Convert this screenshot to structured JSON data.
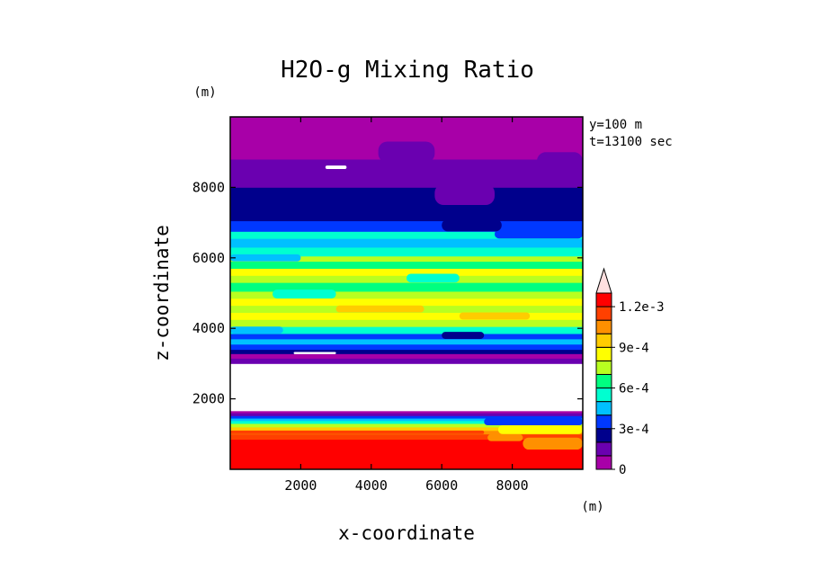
{
  "chart_data": {
    "type": "heatmap",
    "title": "H2O-g Mixing Ratio",
    "xlabel": "x-coordinate",
    "ylabel": "z-coordinate",
    "x_unit": "(m)",
    "y_unit": "(m)",
    "xlim": [
      0,
      10000
    ],
    "ylim": [
      0,
      10000
    ],
    "x_ticks": [
      2000,
      4000,
      6000,
      8000
    ],
    "y_ticks": [
      2000,
      4000,
      6000,
      8000
    ],
    "info_lines": [
      "y=100 m",
      "t=13100 sec"
    ],
    "colorbar": {
      "min": 0,
      "max": 0.0013,
      "levels": [
        0,
        0.0001,
        0.0002,
        0.0003,
        0.0004,
        0.0005,
        0.0006,
        0.0007,
        0.0008,
        0.0009,
        0.001,
        0.0011,
        0.0012,
        0.0013
      ],
      "colors": [
        "#a800a8",
        "#6a00b0",
        "#00008c",
        "#0038ff",
        "#00c0ff",
        "#00ffd0",
        "#00ff80",
        "#b8ff20",
        "#ffff00",
        "#ffcc00",
        "#ff9000",
        "#ff4000",
        "#ff0000",
        "#ffc8c8"
      ],
      "tick_labels": [
        {
          "value": 0,
          "label": "0"
        },
        {
          "value": 0.0003,
          "label": "3e-4"
        },
        {
          "value": 0.0006,
          "label": "6e-4"
        },
        {
          "value": 0.0009,
          "label": "9e-4"
        },
        {
          "value": 0.0012,
          "label": "1.2e-3"
        }
      ],
      "extend": "max",
      "extend_color": "#ffe0e0"
    },
    "bands": [
      {
        "z0": 0,
        "z1": 850,
        "value": 0.00125
      },
      {
        "z0": 850,
        "z1": 1000,
        "value": 0.00115
      },
      {
        "z0": 1000,
        "z1": 1100,
        "value": 0.00105
      },
      {
        "z0": 1100,
        "z1": 1200,
        "value": 0.00095
      },
      {
        "z0": 1200,
        "z1": 1300,
        "value": 0.00075
      },
      {
        "z0": 1300,
        "z1": 1380,
        "value": 0.00055
      },
      {
        "z0": 1380,
        "z1": 1450,
        "value": 0.00045
      },
      {
        "z0": 1450,
        "z1": 1520,
        "value": 0.00035
      },
      {
        "z0": 1520,
        "z1": 1600,
        "value": 0.00015
      },
      {
        "z0": 1600,
        "z1": 1660,
        "value": 5e-05
      },
      {
        "z0": 1660,
        "z1": 3000,
        "value": -1
      },
      {
        "z0": 3000,
        "z1": 3150,
        "value": 0.00015
      },
      {
        "z0": 3150,
        "z1": 3280,
        "value": 5e-05
      },
      {
        "z0": 3280,
        "z1": 3400,
        "value": 0.00025
      },
      {
        "z0": 3400,
        "z1": 3550,
        "value": 0.00035
      },
      {
        "z0": 3550,
        "z1": 3700,
        "value": 0.00045
      },
      {
        "z0": 3700,
        "z1": 3850,
        "value": 0.00035
      },
      {
        "z0": 3850,
        "z1": 4050,
        "value": 0.00055
      },
      {
        "z0": 4050,
        "z1": 4250,
        "value": 0.00075
      },
      {
        "z0": 4250,
        "z1": 4450,
        "value": 0.00085
      },
      {
        "z0": 4450,
        "z1": 4650,
        "value": 0.00075
      },
      {
        "z0": 4650,
        "z1": 4850,
        "value": 0.00085
      },
      {
        "z0": 4850,
        "z1": 5050,
        "value": 0.00075
      },
      {
        "z0": 5050,
        "z1": 5300,
        "value": 0.00065
      },
      {
        "z0": 5300,
        "z1": 5500,
        "value": 0.00075
      },
      {
        "z0": 5500,
        "z1": 5700,
        "value": 0.00085
      },
      {
        "z0": 5700,
        "z1": 5900,
        "value": 0.00065
      },
      {
        "z0": 5900,
        "z1": 6050,
        "value": 0.00075
      },
      {
        "z0": 6050,
        "z1": 6300,
        "value": 0.00055
      },
      {
        "z0": 6300,
        "z1": 6550,
        "value": 0.00045
      },
      {
        "z0": 6550,
        "z1": 6750,
        "value": 0.00055
      },
      {
        "z0": 6750,
        "z1": 7050,
        "value": 0.00035
      },
      {
        "z0": 7050,
        "z1": 7500,
        "value": 0.00025
      },
      {
        "z0": 7500,
        "z1": 8000,
        "value": 0.00025
      },
      {
        "z0": 8000,
        "z1": 8800,
        "value": 0.00015
      },
      {
        "z0": 8800,
        "z1": 10000,
        "value": 5e-05
      }
    ],
    "patches": [
      {
        "x0": 1200,
        "x1": 3000,
        "z0": 4850,
        "z1": 5100,
        "value": 0.00055
      },
      {
        "x0": 5000,
        "x1": 6500,
        "z0": 5300,
        "z1": 5550,
        "value": 0.00055
      },
      {
        "x0": 3000,
        "x1": 5500,
        "z0": 4450,
        "z1": 4650,
        "value": 0.00095
      },
      {
        "x0": 6500,
        "x1": 8500,
        "z0": 4250,
        "z1": 4450,
        "value": 0.00095
      },
      {
        "x0": 0,
        "x1": 1500,
        "z0": 3850,
        "z1": 4050,
        "value": 0.00045
      },
      {
        "x0": 6000,
        "x1": 7200,
        "z0": 3700,
        "z1": 3900,
        "value": 0.00025
      },
      {
        "x0": 0,
        "x1": 2000,
        "z0": 5900,
        "z1": 6100,
        "value": 0.00045
      },
      {
        "x0": 7500,
        "x1": 10000,
        "z0": 6550,
        "z1": 6800,
        "value": 0.00035
      },
      {
        "x0": 5800,
        "x1": 7500,
        "z0": 7500,
        "z1": 8100,
        "value": 0.00015
      },
      {
        "x0": 6000,
        "x1": 7700,
        "z0": 6750,
        "z1": 7100,
        "value": 0.00025
      },
      {
        "x0": 4200,
        "x1": 5800,
        "z0": 8700,
        "z1": 9300,
        "value": 0.00015
      },
      {
        "x0": 8700,
        "x1": 10000,
        "z0": 8500,
        "z1": 9000,
        "value": 0.00015
      },
      {
        "x0": 2700,
        "x1": 3300,
        "z0": 8520,
        "z1": 8620,
        "value": -1
      },
      {
        "x0": 1800,
        "x1": 3000,
        "z0": 3270,
        "z1": 3330,
        "value": -1
      },
      {
        "x0": 7300,
        "x1": 8300,
        "z0": 800,
        "z1": 1000,
        "value": 0.00105
      },
      {
        "x0": 8300,
        "x1": 10000,
        "z0": 560,
        "z1": 900,
        "value": 0.00105
      },
      {
        "x0": 7600,
        "x1": 10000,
        "z0": 1000,
        "z1": 1250,
        "value": 0.00085
      },
      {
        "x0": 7200,
        "x1": 10000,
        "z0": 1250,
        "z1": 1450,
        "value": 0.00035
      },
      {
        "x0": 0,
        "x1": 7200,
        "z0": 1000,
        "z1": 1100,
        "value": 0.00115
      }
    ]
  }
}
